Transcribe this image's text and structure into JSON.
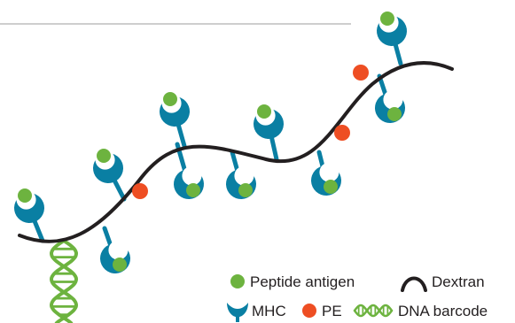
{
  "colors": {
    "mhc": "#0a7fa3",
    "mhc_highlight": "#0fa0c8",
    "peptide": "#6db33f",
    "pe": "#ee4e23",
    "dextran": "#231f20",
    "dna": "#6db33f",
    "divider": "#bdbdbd"
  },
  "legend": {
    "peptide": "Peptide antigen",
    "dextran": "Dextran",
    "mhc": "MHC",
    "pe": "PE",
    "dna": "DNA barcode"
  },
  "icons": {
    "peptide": "green-dot-icon",
    "dextran": "arch-icon",
    "mhc": "mhc-cup-icon",
    "pe": "red-dot-icon",
    "dna": "double-helix-icon"
  }
}
